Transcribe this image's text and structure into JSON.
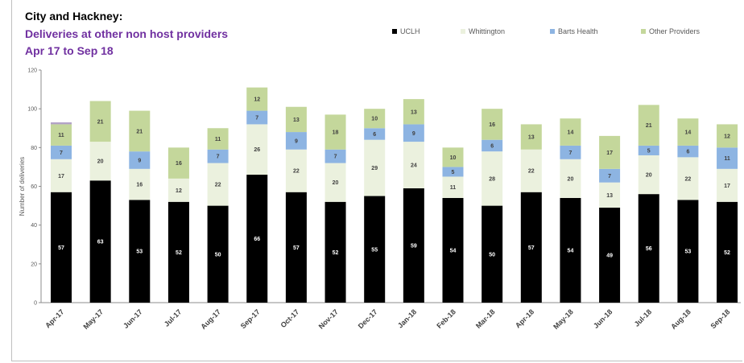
{
  "header": {
    "title": "City and  Hackney:",
    "subtitle_line1": "Deliveries at other non host providers",
    "subtitle_line2": "Apr 17 to Sep 18"
  },
  "colors": {
    "UCLH": "#000000",
    "Whittington": "#ebf1de",
    "Barts Health": "#8db4e2",
    "Other Providers": "#c4d79b",
    "Other": "#b3a2c7"
  },
  "chart_data": {
    "type": "bar",
    "stacked": true,
    "title": "",
    "xlabel": "",
    "ylabel": "Number of deliveries",
    "ylim": [
      0,
      120
    ],
    "yticks": [
      0,
      20,
      40,
      60,
      80,
      100,
      120
    ],
    "grid": false,
    "legend_position": "top",
    "categories": [
      "Apr-17",
      "May-17",
      "Jun-17",
      "Jul-17",
      "Aug-17",
      "Sep-17",
      "Oct-17",
      "Nov-17",
      "Dec-17",
      "Jan-18",
      "Feb-18",
      "Mar-18",
      "Apr-18",
      "May-18",
      "Jun-18",
      "Jul-18",
      "Aug-18",
      "Sep-18"
    ],
    "series": [
      {
        "name": "UCLH",
        "values": [
          57,
          63,
          53,
          52,
          50,
          66,
          57,
          52,
          55,
          59,
          54,
          50,
          57,
          54,
          49,
          56,
          53,
          52
        ]
      },
      {
        "name": "Whittington",
        "values": [
          17,
          20,
          16,
          12,
          22,
          26,
          22,
          20,
          29,
          24,
          11,
          28,
          22,
          20,
          13,
          20,
          22,
          17
        ]
      },
      {
        "name": "Barts Health",
        "values": [
          7,
          0,
          9,
          0,
          7,
          7,
          9,
          7,
          6,
          9,
          5,
          6,
          0,
          7,
          7,
          5,
          6,
          11
        ]
      },
      {
        "name": "Other Providers",
        "values": [
          11,
          21,
          21,
          16,
          11,
          12,
          13,
          18,
          10,
          13,
          10,
          16,
          13,
          14,
          17,
          21,
          14,
          12
        ]
      },
      {
        "name": "",
        "legend": false,
        "values": [
          1,
          0,
          0,
          0,
          0,
          0,
          0,
          0,
          0,
          0,
          0,
          0,
          0,
          0,
          0,
          0,
          0,
          0
        ]
      }
    ]
  }
}
